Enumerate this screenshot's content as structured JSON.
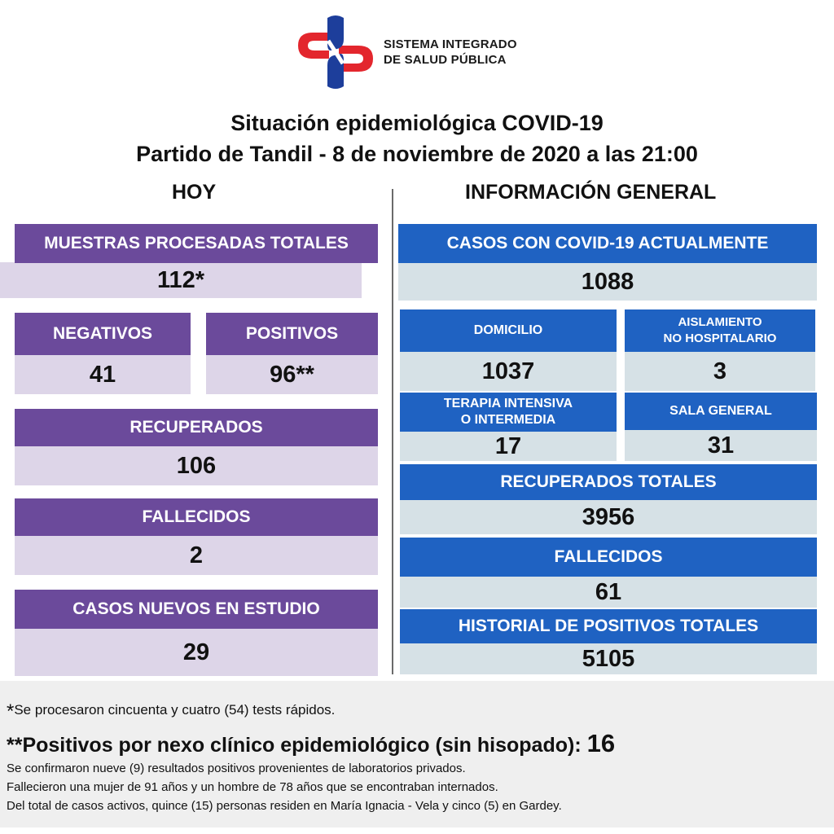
{
  "header": {
    "brand_line1": "SISTEMA INTEGRADO",
    "brand_line2": "DE SALUD PÚBLICA",
    "title_line1": "Situación epidemiológica COVID-19",
    "title_line2": "Partido de Tandil - 8 de noviembre de 2020 a las 21:00",
    "colors": {
      "logo_red": "#e3262d",
      "logo_blue": "#1d3e9b"
    }
  },
  "hoy": {
    "heading": "HOY",
    "muestras": {
      "label": "MUESTRAS PROCESADAS TOTALES",
      "value": "112*"
    },
    "negativos": {
      "label": "NEGATIVOS",
      "value": "41"
    },
    "positivos": {
      "label": "POSITIVOS",
      "value": "96**"
    },
    "recuperados": {
      "label": "RECUPERADOS",
      "value": "106"
    },
    "fallecidos": {
      "label": "FALLECIDOS",
      "value": "2"
    },
    "casos_nuevos": {
      "label": "CASOS NUEVOS EN ESTUDIO",
      "value": "29"
    }
  },
  "general": {
    "heading": "INFORMACIÓN GENERAL",
    "casos_actuales": {
      "label": "CASOS CON COVID-19 ACTUALMENTE",
      "value": "1088"
    },
    "domicilio": {
      "label": "DOMICILIO",
      "value": "1037"
    },
    "aislamiento": {
      "label_line1": "AISLAMIENTO",
      "label_line2": "NO HOSPITALARIO",
      "value": "3"
    },
    "terapia": {
      "label_line1": "TERAPIA INTENSIVA",
      "label_line2": "O INTERMEDIA",
      "value": "17"
    },
    "sala_general": {
      "label": "SALA GENERAL",
      "value": "31"
    },
    "recuperados_totales": {
      "label": "RECUPERADOS TOTALES",
      "value": "3956"
    },
    "fallecidos": {
      "label": "FALLECIDOS",
      "value": "61"
    },
    "historial": {
      "label": "HISTORIAL DE POSITIVOS TOTALES",
      "value": "5105"
    }
  },
  "footer": {
    "note1_mark": "*",
    "note1_text": "Se procesaron cincuenta y cuatro (54) tests rápidos.",
    "note2_text": "**Positivos por nexo clínico epidemiológico (sin hisopado):",
    "note2_value": "16",
    "line1": "Se confirmaron nueve (9) resultados positivos provenientes de laboratorios privados.",
    "line2": "Fallecieron una mujer de 91 años y un hombre de 78 años que se encontraban internados.",
    "line3": "Del total de casos activos, quince (15) personas residen en María Ignacia - Vela y cinco (5) en Gardey."
  }
}
